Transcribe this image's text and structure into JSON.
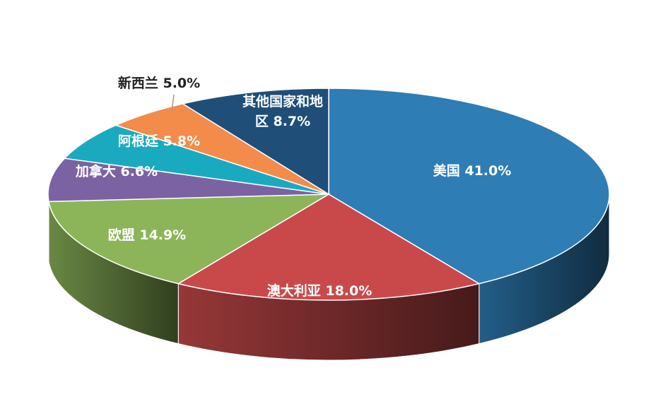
{
  "chart_data": {
    "type": "pie",
    "pie_style": "3d",
    "categories": [
      "美国",
      "澳大利亚",
      "欧盟",
      "加拿大",
      "阿根廷",
      "新西兰",
      "其他国家和地区"
    ],
    "values": [
      41.0,
      18.0,
      14.9,
      6.6,
      5.8,
      5.0,
      8.7
    ],
    "value_labels": [
      "41.0%",
      "18.0%",
      "14.9%",
      "6.6%",
      "5.8%",
      "5.0%",
      "8.7%"
    ],
    "colors": [
      "#2e7db5",
      "#c9494b",
      "#8cb55a",
      "#7b62a3",
      "#1aaac0",
      "#f38b4a",
      "#1f4e79"
    ]
  }
}
